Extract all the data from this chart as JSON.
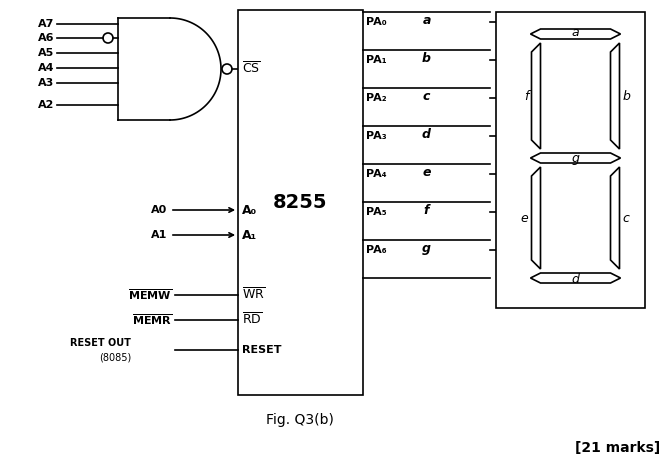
{
  "title": "Fig. Q3(b)",
  "marks_text": "[21 marks]",
  "bg_color": "#ffffff",
  "line_color": "#000000",
  "fig_width": 6.71,
  "fig_height": 4.61,
  "dpi": 100,
  "gate_inputs": [
    "A7",
    "A6",
    "A5",
    "A4",
    "A3",
    "A2"
  ],
  "pa_labels": [
    "PA₀",
    "PA₁",
    "PA₂",
    "PA₃",
    "PA₄",
    "PA₅",
    "PA₆"
  ],
  "seg_letters": [
    "a",
    "b",
    "c",
    "d",
    "e",
    "f",
    "g"
  ]
}
